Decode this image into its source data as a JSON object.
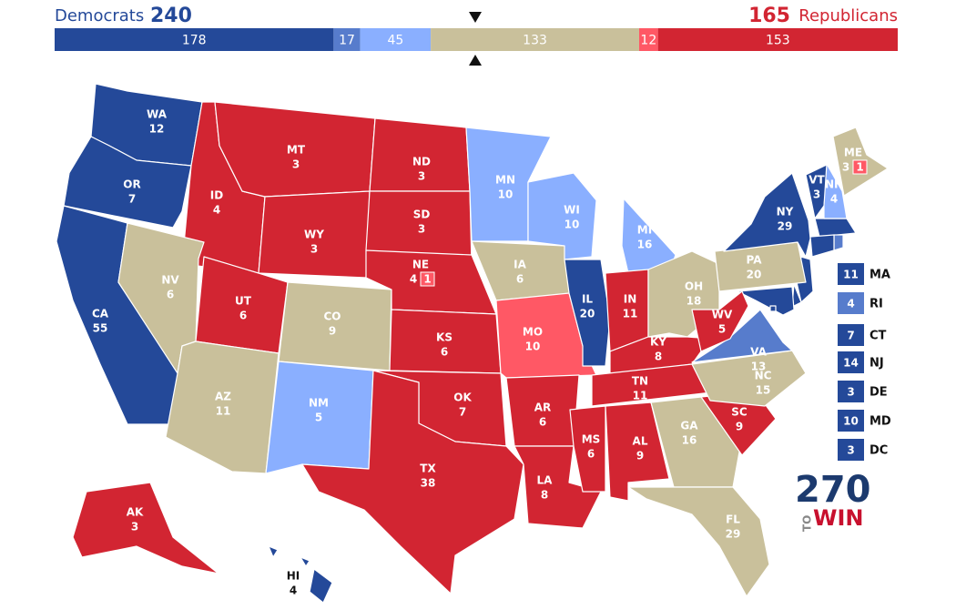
{
  "header": {
    "left_label": "Democrats",
    "left_total": 240,
    "right_total": 165,
    "right_label": "Republicans"
  },
  "ratings": {
    "safe_d": "#244999",
    "likely_d": "#577ccc",
    "lean_d": "#8aafff",
    "tossup": "#c9c09b",
    "lean_r": "#ff5865",
    "safe_r": "#d22532"
  },
  "bar": [
    {
      "value": 178,
      "rating": "safe_d"
    },
    {
      "value": 17,
      "rating": "likely_d"
    },
    {
      "value": 45,
      "rating": "lean_d"
    },
    {
      "value": 133,
      "rating": "tossup"
    },
    {
      "value": 12,
      "rating": "lean_r"
    },
    {
      "value": 153,
      "rating": "safe_r"
    }
  ],
  "states": [
    {
      "abbr": "WA",
      "ev": 12,
      "rating": "safe_d"
    },
    {
      "abbr": "OR",
      "ev": 7,
      "rating": "safe_d"
    },
    {
      "abbr": "CA",
      "ev": 55,
      "rating": "safe_d"
    },
    {
      "abbr": "ID",
      "ev": 4,
      "rating": "safe_r"
    },
    {
      "abbr": "NV",
      "ev": 6,
      "rating": "tossup"
    },
    {
      "abbr": "MT",
      "ev": 3,
      "rating": "safe_r"
    },
    {
      "abbr": "WY",
      "ev": 3,
      "rating": "safe_r"
    },
    {
      "abbr": "UT",
      "ev": 6,
      "rating": "safe_r"
    },
    {
      "abbr": "AZ",
      "ev": 11,
      "rating": "tossup"
    },
    {
      "abbr": "CO",
      "ev": 9,
      "rating": "tossup"
    },
    {
      "abbr": "NM",
      "ev": 5,
      "rating": "lean_d"
    },
    {
      "abbr": "ND",
      "ev": 3,
      "rating": "safe_r"
    },
    {
      "abbr": "SD",
      "ev": 3,
      "rating": "safe_r"
    },
    {
      "abbr": "NE",
      "ev": 4,
      "rating": "safe_r",
      "split": {
        "ev": 1,
        "rating": "lean_r"
      }
    },
    {
      "abbr": "KS",
      "ev": 6,
      "rating": "safe_r"
    },
    {
      "abbr": "OK",
      "ev": 7,
      "rating": "safe_r"
    },
    {
      "abbr": "TX",
      "ev": 38,
      "rating": "safe_r"
    },
    {
      "abbr": "MN",
      "ev": 10,
      "rating": "lean_d"
    },
    {
      "abbr": "IA",
      "ev": 6,
      "rating": "tossup"
    },
    {
      "abbr": "MO",
      "ev": 10,
      "rating": "lean_r"
    },
    {
      "abbr": "AR",
      "ev": 6,
      "rating": "safe_r"
    },
    {
      "abbr": "LA",
      "ev": 8,
      "rating": "safe_r"
    },
    {
      "abbr": "WI",
      "ev": 10,
      "rating": "lean_d"
    },
    {
      "abbr": "IL",
      "ev": 20,
      "rating": "safe_d"
    },
    {
      "abbr": "MI",
      "ev": 16,
      "rating": "lean_d"
    },
    {
      "abbr": "IN",
      "ev": 11,
      "rating": "safe_r"
    },
    {
      "abbr": "OH",
      "ev": 18,
      "rating": "tossup"
    },
    {
      "abbr": "KY",
      "ev": 8,
      "rating": "safe_r"
    },
    {
      "abbr": "TN",
      "ev": 11,
      "rating": "safe_r"
    },
    {
      "abbr": "MS",
      "ev": 6,
      "rating": "safe_r"
    },
    {
      "abbr": "AL",
      "ev": 9,
      "rating": "safe_r"
    },
    {
      "abbr": "GA",
      "ev": 16,
      "rating": "tossup"
    },
    {
      "abbr": "FL",
      "ev": 29,
      "rating": "tossup"
    },
    {
      "abbr": "SC",
      "ev": 9,
      "rating": "safe_r"
    },
    {
      "abbr": "NC",
      "ev": 15,
      "rating": "tossup"
    },
    {
      "abbr": "VA",
      "ev": 13,
      "rating": "likely_d"
    },
    {
      "abbr": "WV",
      "ev": 5,
      "rating": "safe_r"
    },
    {
      "abbr": "PA",
      "ev": 20,
      "rating": "tossup"
    },
    {
      "abbr": "NY",
      "ev": 29,
      "rating": "safe_d"
    },
    {
      "abbr": "VT",
      "ev": 3,
      "rating": "safe_d"
    },
    {
      "abbr": "NH",
      "ev": 4,
      "rating": "lean_d"
    },
    {
      "abbr": "ME",
      "ev": 3,
      "rating": "tossup",
      "split": {
        "ev": 1,
        "rating": "lean_r"
      }
    },
    {
      "abbr": "AK",
      "ev": 3,
      "rating": "safe_r"
    },
    {
      "abbr": "HI",
      "ev": 4,
      "rating": "safe_d"
    }
  ],
  "small_states": [
    {
      "abbr": "MA",
      "ev": 11,
      "rating": "safe_d"
    },
    {
      "abbr": "RI",
      "ev": 4,
      "rating": "likely_d"
    },
    {
      "abbr": "CT",
      "ev": 7,
      "rating": "safe_d"
    },
    {
      "abbr": "NJ",
      "ev": 14,
      "rating": "safe_d"
    },
    {
      "abbr": "DE",
      "ev": 3,
      "rating": "safe_d"
    },
    {
      "abbr": "MD",
      "ev": 10,
      "rating": "safe_d"
    },
    {
      "abbr": "DC",
      "ev": 3,
      "rating": "safe_d"
    }
  ],
  "logo": {
    "number": "270",
    "small": "TO",
    "word": "WIN"
  }
}
